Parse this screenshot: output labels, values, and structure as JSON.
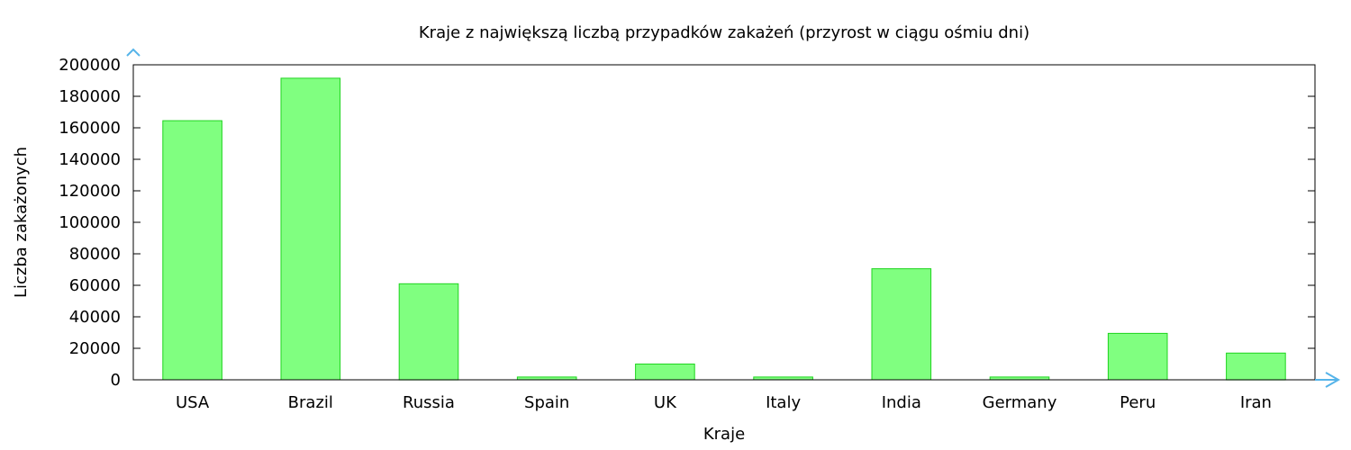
{
  "chart_data": {
    "type": "bar",
    "title": "Kraje z największą liczbą przypadków zakażeń (przyrost w ciągu ośmiu dni)",
    "xlabel": "Kraje",
    "ylabel": "Liczba zakażonych",
    "categories": [
      "USA",
      "Brazil",
      "Russia",
      "Spain",
      "UK",
      "Italy",
      "India",
      "Germany",
      "Peru",
      "Iran"
    ],
    "values": [
      164500,
      191500,
      61000,
      1800,
      10000,
      1800,
      70500,
      1800,
      29500,
      17000
    ],
    "ylim": [
      0,
      200000
    ],
    "yticks": [
      0,
      20000,
      40000,
      60000,
      80000,
      100000,
      120000,
      140000,
      160000,
      180000,
      200000
    ],
    "grid": false,
    "legend": "none",
    "colors": {
      "bar_fill": "#80ff80",
      "bar_stroke": "#1fd41f",
      "axis_arrow": "#56b4e9",
      "frame": "#000000"
    }
  }
}
